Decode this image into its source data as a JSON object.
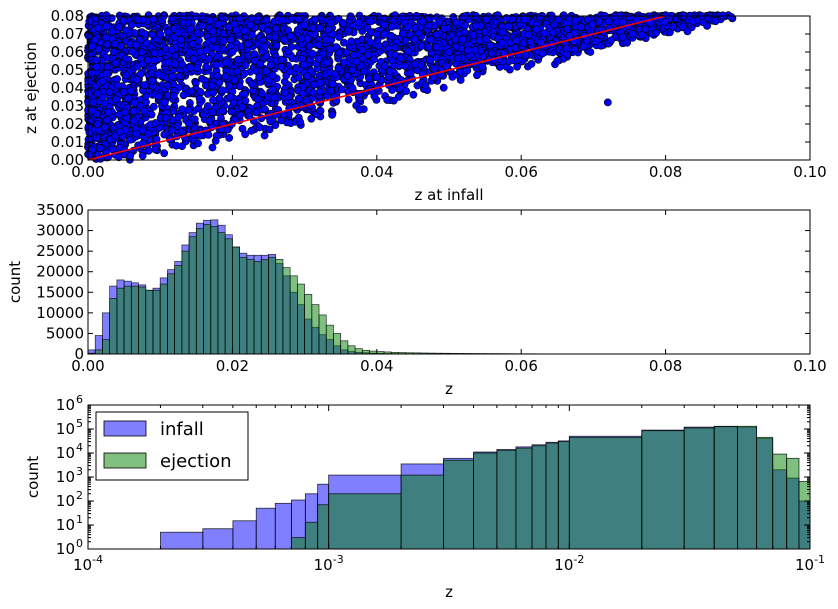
{
  "colors": {
    "scatter": "#0000ff",
    "line": "#ff0000",
    "infall": "#0000ff",
    "ejection": "#008000"
  },
  "chart_data": [
    {
      "type": "scatter",
      "xlabel": "z at infall",
      "ylabel": "z at ejection",
      "xlim": [
        0.0,
        0.1
      ],
      "ylim": [
        0.0,
        0.08
      ],
      "xticks": [
        "0.00",
        "0.02",
        "0.04",
        "0.06",
        "0.08",
        "0.10"
      ],
      "yticks": [
        "0.00",
        "0.01",
        "0.02",
        "0.03",
        "0.04",
        "0.05",
        "0.06",
        "0.07",
        "0.08"
      ],
      "reference_line": {
        "x": [
          0.0,
          0.08
        ],
        "y": [
          0.0,
          0.08
        ]
      },
      "points_description": "dense cloud of points above the y=x line, z at infall 0.00 to 0.09",
      "sample_points": [
        [
          0.01,
          0.07
        ],
        [
          0.02,
          0.06
        ],
        [
          0.03,
          0.075
        ],
        [
          0.05,
          0.06
        ],
        [
          0.072,
          0.032
        ],
        [
          0.085,
          0.08
        ],
        [
          0.065,
          0.055
        ],
        [
          0.04,
          0.04
        ]
      ]
    },
    {
      "type": "bar",
      "xlabel": "z",
      "ylabel": "count",
      "xlim": [
        0.0,
        0.1
      ],
      "ylim": [
        0,
        35000
      ],
      "xticks": [
        "0.00",
        "0.02",
        "0.04",
        "0.06",
        "0.08",
        "0.10"
      ],
      "yticks": [
        "0",
        "5000",
        "10000",
        "15000",
        "20000",
        "25000",
        "30000",
        "35000"
      ],
      "bin_width": 0.001,
      "series": [
        {
          "name": "infall",
          "values": [
            1000,
            4500,
            10000,
            16500,
            18000,
            17700,
            17300,
            16800,
            15500,
            16000,
            18500,
            20500,
            22500,
            26500,
            29500,
            31800,
            32500,
            32600,
            31300,
            29000,
            26000,
            24500,
            24000,
            24000,
            24000,
            24200,
            22000,
            19000,
            15000,
            12000,
            8500,
            6500,
            4700,
            3500,
            2000,
            1000,
            600,
            400,
            300,
            200,
            150,
            100,
            80,
            70,
            60,
            50,
            40,
            30,
            30,
            20,
            20,
            20,
            15,
            15,
            10,
            10,
            10,
            10,
            10,
            10,
            5,
            5,
            5,
            5,
            5,
            5,
            5,
            5,
            5,
            5,
            5,
            5,
            5,
            5
          ]
        },
        {
          "name": "ejection",
          "values": [
            200,
            1000,
            3500,
            13500,
            16000,
            16500,
            16500,
            16300,
            15500,
            15500,
            17000,
            19500,
            21500,
            25000,
            28500,
            30500,
            31500,
            31000,
            29500,
            28000,
            26000,
            23500,
            23000,
            22500,
            23000,
            23500,
            23000,
            21000,
            19000,
            17000,
            14500,
            12000,
            9500,
            7000,
            5000,
            3200,
            2000,
            1300,
            900,
            700,
            600,
            500,
            400,
            350,
            300,
            280,
            250,
            220,
            200,
            180,
            160,
            150,
            140,
            130,
            120,
            110,
            100,
            90,
            80,
            70,
            60,
            50,
            45,
            40,
            35,
            30,
            25,
            20,
            15,
            10,
            10,
            10,
            10,
            10
          ]
        }
      ]
    },
    {
      "type": "bar",
      "xlabel": "z",
      "ylabel": "count",
      "xscale": "log",
      "yscale": "log",
      "xlim": [
        0.0001,
        0.1
      ],
      "ylim": [
        1,
        1000000
      ],
      "xticks": [
        {
          "base": "10",
          "exp": "-4"
        },
        {
          "base": "10",
          "exp": "-3"
        },
        {
          "base": "10",
          "exp": "-2"
        },
        {
          "base": "10",
          "exp": "-1"
        }
      ],
      "yticks": [
        {
          "base": "10",
          "exp": "0"
        },
        {
          "base": "10",
          "exp": "1"
        },
        {
          "base": "10",
          "exp": "2"
        },
        {
          "base": "10",
          "exp": "3"
        },
        {
          "base": "10",
          "exp": "4"
        },
        {
          "base": "10",
          "exp": "5"
        },
        {
          "base": "10",
          "exp": "6"
        }
      ],
      "legend_position": "upper-left",
      "series": [
        {
          "name": "infall",
          "bins": [
            [
              0.0002,
              0.0003,
              5
            ],
            [
              0.0003,
              0.0004,
              7
            ],
            [
              0.0004,
              0.0005,
              15
            ],
            [
              0.0005,
              0.0006,
              50
            ],
            [
              0.0006,
              0.0007,
              80
            ],
            [
              0.0007,
              0.0008,
              110
            ],
            [
              0.0008,
              0.0009,
              200
            ],
            [
              0.0009,
              0.001,
              500
            ],
            [
              0.001,
              0.002,
              1200
            ],
            [
              0.002,
              0.003,
              3500
            ],
            [
              0.003,
              0.004,
              6000
            ],
            [
              0.004,
              0.005,
              11000
            ],
            [
              0.005,
              0.006,
              14000
            ],
            [
              0.006,
              0.007,
              18000
            ],
            [
              0.007,
              0.008,
              22000
            ],
            [
              0.008,
              0.009,
              28000
            ],
            [
              0.009,
              0.01,
              32000
            ],
            [
              0.01,
              0.02,
              50000
            ],
            [
              0.02,
              0.03,
              90000
            ],
            [
              0.03,
              0.04,
              120000
            ],
            [
              0.04,
              0.05,
              130000
            ],
            [
              0.05,
              0.06,
              120000
            ],
            [
              0.06,
              0.07,
              40000
            ],
            [
              0.07,
              0.08,
              2000
            ],
            [
              0.08,
              0.09,
              900
            ],
            [
              0.09,
              0.1,
              100
            ]
          ]
        },
        {
          "name": "ejection",
          "bins": [
            [
              0.0007,
              0.0008,
              3
            ],
            [
              0.0008,
              0.0009,
              13
            ],
            [
              0.0009,
              0.001,
              70
            ],
            [
              0.001,
              0.002,
              200
            ],
            [
              0.002,
              0.003,
              1200
            ],
            [
              0.003,
              0.004,
              5000
            ],
            [
              0.004,
              0.005,
              10000
            ],
            [
              0.005,
              0.006,
              13000
            ],
            [
              0.006,
              0.007,
              16000
            ],
            [
              0.007,
              0.008,
              20000
            ],
            [
              0.008,
              0.009,
              26000
            ],
            [
              0.009,
              0.01,
              30000
            ],
            [
              0.01,
              0.02,
              45000
            ],
            [
              0.02,
              0.03,
              85000
            ],
            [
              0.03,
              0.04,
              110000
            ],
            [
              0.04,
              0.05,
              125000
            ],
            [
              0.05,
              0.06,
              130000
            ],
            [
              0.06,
              0.07,
              45000
            ],
            [
              0.07,
              0.08,
              9000
            ],
            [
              0.08,
              0.09,
              6000
            ],
            [
              0.09,
              0.1,
              650
            ]
          ]
        }
      ]
    }
  ]
}
